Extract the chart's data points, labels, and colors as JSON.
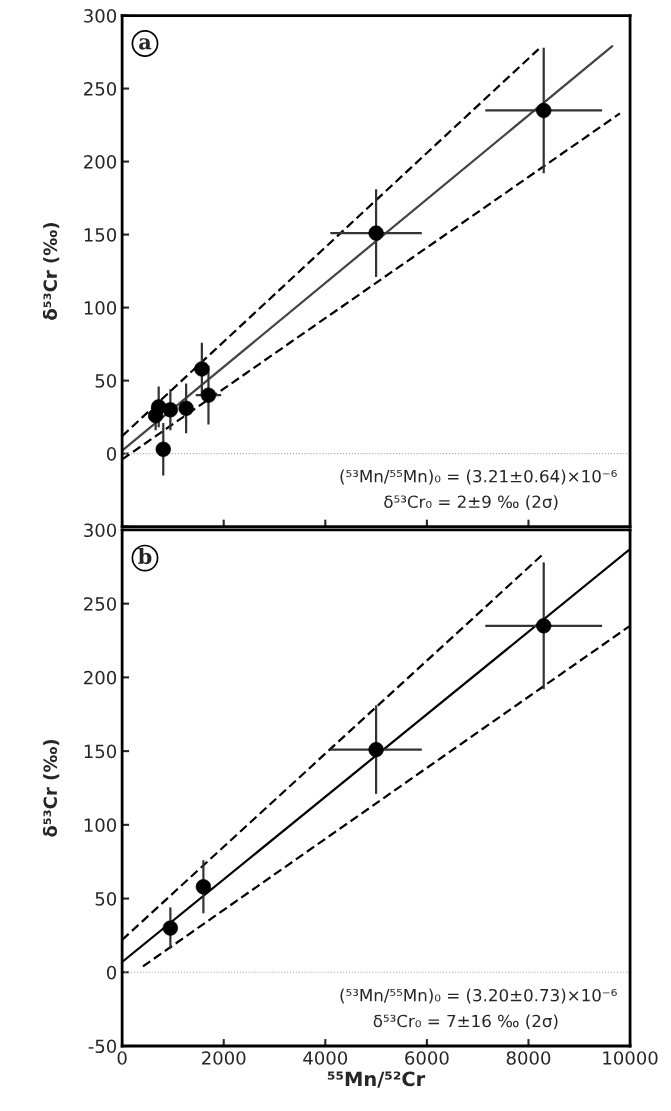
{
  "chart_data": [
    {
      "type": "scatter",
      "ylabel": "δ⁵³Cr (‰)",
      "xlim": [
        0,
        10000
      ],
      "xticks": [
        0,
        2000,
        4000,
        6000,
        8000,
        10000
      ],
      "ylim": [
        -50,
        300
      ],
      "yticks": [
        {
          "value": -50,
          "label": null
        },
        0,
        50,
        100,
        150,
        200,
        250,
        300
      ],
      "tick_labels": "y",
      "grid": false,
      "annotations": [
        "a",
        "(⁵³Mn/⁵⁵Mn)₀ = (3.21±0.64)×10⁻⁶",
        "δ⁵³Cr₀ = 2±9 ‰ (2σ)"
      ],
      "ref_lines": [
        {
          "axis": "y",
          "value": 0,
          "color": "#aaaaaa",
          "line_style": "dotted"
        }
      ],
      "series": [
        {
          "type": "line",
          "line_style": "solid",
          "color": "#444444",
          "x": [
            0,
            9650
          ],
          "values": [
            2,
            279
          ]
        },
        {
          "type": "line",
          "line_style": "dashed",
          "color": "#000000",
          "x": [
            0,
            8200
          ],
          "values": [
            12,
            277
          ]
        },
        {
          "type": "line",
          "line_style": "dashed",
          "color": "#000000",
          "x": [
            0,
            9800
          ],
          "values": [
            -4,
            233
          ]
        },
        {
          "marker": "circle",
          "color": "#000000",
          "x": [
            8300,
            5000,
            1570,
            1700,
            1260,
            950,
            720,
            660,
            810
          ],
          "values": [
            235,
            151,
            58,
            40,
            31,
            30,
            32,
            26,
            3
          ],
          "errors": [
            43,
            30,
            18,
            20,
            17,
            14,
            14,
            10,
            18
          ],
          "xerrors": [
            1150,
            900,
            null,
            250,
            null,
            null,
            null,
            null,
            null
          ]
        }
      ]
    },
    {
      "type": "scatter",
      "xlabel": "⁵⁵Mn/⁵²Cr",
      "ylabel": "δ⁵³Cr (‰)",
      "xlim": [
        0,
        10000
      ],
      "xticks": [
        0,
        2000,
        4000,
        6000,
        8000,
        10000
      ],
      "ylim": [
        -50,
        300
      ],
      "yticks": [
        -50,
        0,
        50,
        100,
        150,
        200,
        250,
        300
      ],
      "grid": false,
      "annotations": [
        "b",
        "(⁵³Mn/⁵⁵Mn)₀ = (3.20±0.73)×10⁻⁶",
        "δ⁵³Cr₀ = 7±16 ‰ (2σ)"
      ],
      "ref_lines": [
        {
          "axis": "y",
          "value": 0,
          "color": "#aaaaaa",
          "line_style": "dotted"
        }
      ],
      "series": [
        {
          "type": "line",
          "line_style": "solid",
          "color": "#000000",
          "x": [
            0,
            10000
          ],
          "values": [
            7,
            287
          ]
        },
        {
          "type": "line",
          "line_style": "dashed",
          "color": "#000000",
          "x": [
            0,
            8300
          ],
          "values": [
            22,
            284
          ]
        },
        {
          "type": "line",
          "line_style": "dashed",
          "color": "#000000",
          "x": [
            410,
            10000
          ],
          "values": [
            4,
            235
          ]
        },
        {
          "marker": "circle",
          "color": "#000000",
          "x": [
            950,
            1600,
            5000,
            8300
          ],
          "values": [
            30,
            58,
            151,
            235
          ],
          "errors": [
            14,
            18,
            30,
            43
          ],
          "xerrors": [
            null,
            null,
            900,
            1150
          ]
        }
      ]
    }
  ]
}
